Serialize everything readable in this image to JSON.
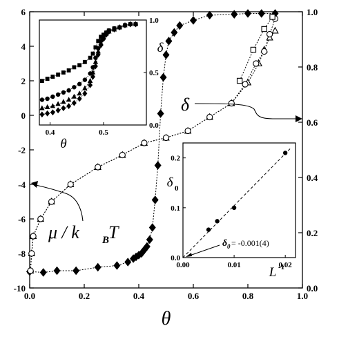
{
  "chart_data": [
    {
      "id": "main",
      "type": "scatter",
      "xlabel": "θ",
      "xlim": [
        0,
        1
      ],
      "xticks": [
        "0.0",
        "0.2",
        "0.4",
        "0.6",
        "0.8",
        "1.0"
      ],
      "ylim_left": [
        -10,
        6
      ],
      "yticks_left": [
        "-10",
        "-8",
        "-6",
        "-4",
        "-2",
        "0",
        "2",
        "4",
        "6"
      ],
      "ylim_right": [
        0,
        1
      ],
      "yticks_right": [
        "0.0",
        "0.2",
        "0.4",
        "0.6",
        "0.8",
        "1.0"
      ],
      "annotations": {
        "mu": "μ / k",
        "mu_sub": "B",
        "mu_tail": "T",
        "delta": "δ"
      },
      "series": [
        {
          "marker": "diamond-filled",
          "axis": "left",
          "points": [
            [
              0.0,
              -9.05
            ],
            [
              0.05,
              -9.1
            ],
            [
              0.1,
              -9.0
            ],
            [
              0.17,
              -9.0
            ],
            [
              0.25,
              -8.8
            ],
            [
              0.32,
              -8.7
            ],
            [
              0.36,
              -8.5
            ],
            [
              0.38,
              -8.3
            ],
            [
              0.39,
              -8.2
            ],
            [
              0.4,
              -8.1
            ],
            [
              0.41,
              -8.0
            ],
            [
              0.42,
              -7.8
            ],
            [
              0.43,
              -7.6
            ],
            [
              0.44,
              -7.2
            ],
            [
              0.45,
              -6.5
            ],
            [
              0.46,
              -4.9
            ],
            [
              0.47,
              -2.9
            ],
            [
              0.48,
              0.1
            ],
            [
              0.49,
              2.2
            ],
            [
              0.5,
              3.5
            ],
            [
              0.51,
              4.3
            ],
            [
              0.53,
              4.8
            ],
            [
              0.55,
              5.2
            ],
            [
              0.6,
              5.5
            ],
            [
              0.66,
              5.8
            ],
            [
              0.75,
              5.85
            ],
            [
              0.8,
              5.9
            ],
            [
              0.85,
              5.9
            ],
            [
              0.9,
              5.9
            ]
          ]
        },
        {
          "marker": "triangle-open",
          "axis": "left",
          "points": [
            [
              0.003,
              -9.0
            ],
            [
              0.007,
              -8.0
            ],
            [
              0.013,
              -7.0
            ],
            [
              0.04,
              -6.0
            ],
            [
              0.08,
              -5.0
            ],
            [
              0.15,
              -4.0
            ],
            [
              0.25,
              -3.0
            ],
            [
              0.34,
              -2.3
            ],
            [
              0.42,
              -1.6
            ],
            [
              0.5,
              -1.3
            ],
            [
              0.58,
              -0.9
            ],
            [
              0.66,
              -0.1
            ],
            [
              0.74,
              0.7
            ],
            [
              0.8,
              1.9
            ],
            [
              0.84,
              3.0
            ],
            [
              0.86,
              3.8
            ],
            [
              0.88,
              4.5
            ],
            [
              0.9,
              4.9
            ]
          ]
        },
        {
          "marker": "circle-open",
          "axis": "left",
          "points": [
            [
              0.003,
              -9.0
            ],
            [
              0.007,
              -8.0
            ],
            [
              0.013,
              -7.0
            ],
            [
              0.04,
              -6.0
            ],
            [
              0.08,
              -5.0
            ],
            [
              0.15,
              -4.0
            ],
            [
              0.25,
              -3.0
            ],
            [
              0.34,
              -2.3
            ],
            [
              0.42,
              -1.6
            ],
            [
              0.5,
              -1.3
            ],
            [
              0.58,
              -0.9
            ],
            [
              0.66,
              -0.1
            ],
            [
              0.74,
              0.7
            ],
            [
              0.79,
              1.8
            ],
            [
              0.83,
              3.0
            ],
            [
              0.86,
              3.7
            ],
            [
              0.88,
              4.7
            ],
            [
              0.9,
              5.6
            ]
          ]
        },
        {
          "marker": "square-open",
          "axis": "left",
          "points": [
            [
              0.77,
              2.0
            ],
            [
              0.82,
              3.8
            ],
            [
              0.86,
              5.0
            ],
            [
              0.89,
              5.7
            ]
          ]
        }
      ]
    },
    {
      "id": "inset_top_left",
      "type": "scatter",
      "xlabel": "θ",
      "ylabel": "δ",
      "xlim": [
        0.38,
        0.58
      ],
      "xticks": [
        "0.4",
        "0.5"
      ],
      "ylim": [
        0,
        1
      ],
      "yticks": [
        "0.0",
        "0.5",
        "1.0"
      ],
      "series": [
        {
          "marker": "square-filled",
          "x": [
            0.385,
            0.395,
            0.405,
            0.415,
            0.425,
            0.435,
            0.445,
            0.455,
            0.465,
            0.475,
            0.48,
            0.485,
            0.49,
            0.495,
            0.5,
            0.505,
            0.51,
            0.52,
            0.53,
            0.54,
            0.55,
            0.56
          ],
          "y": [
            0.42,
            0.44,
            0.46,
            0.48,
            0.5,
            0.52,
            0.55,
            0.57,
            0.6,
            0.64,
            0.68,
            0.74,
            0.8,
            0.84,
            0.86,
            0.88,
            0.9,
            0.92,
            0.93,
            0.95,
            0.96,
            0.96
          ]
        },
        {
          "marker": "circle-filled",
          "x": [
            0.385,
            0.395,
            0.405,
            0.415,
            0.425,
            0.435,
            0.445,
            0.455,
            0.465,
            0.475,
            0.48,
            0.485,
            0.49,
            0.495,
            0.5,
            0.505,
            0.51,
            0.52,
            0.53,
            0.54,
            0.55,
            0.56
          ],
          "y": [
            0.24,
            0.25,
            0.27,
            0.29,
            0.31,
            0.33,
            0.36,
            0.39,
            0.43,
            0.49,
            0.55,
            0.64,
            0.73,
            0.8,
            0.85,
            0.88,
            0.9,
            0.92,
            0.93,
            0.95,
            0.96,
            0.96
          ]
        },
        {
          "marker": "triangle-filled",
          "x": [
            0.385,
            0.395,
            0.405,
            0.415,
            0.425,
            0.435,
            0.445,
            0.455,
            0.465,
            0.475,
            0.48,
            0.485,
            0.49,
            0.495,
            0.5,
            0.505,
            0.51,
            0.52,
            0.53,
            0.54,
            0.55,
            0.56
          ],
          "y": [
            0.16,
            0.17,
            0.18,
            0.2,
            0.22,
            0.24,
            0.27,
            0.3,
            0.35,
            0.42,
            0.5,
            0.6,
            0.7,
            0.78,
            0.84,
            0.87,
            0.89,
            0.91,
            0.93,
            0.95,
            0.96,
            0.96
          ]
        },
        {
          "marker": "diamond-filled",
          "x": [
            0.385,
            0.395,
            0.405,
            0.415,
            0.425,
            0.435,
            0.445,
            0.455,
            0.465,
            0.475,
            0.48,
            0.485,
            0.49,
            0.495,
            0.5,
            0.505,
            0.51,
            0.52,
            0.53,
            0.54,
            0.55,
            0.56
          ],
          "y": [
            0.1,
            0.11,
            0.12,
            0.14,
            0.16,
            0.18,
            0.21,
            0.25,
            0.3,
            0.38,
            0.46,
            0.56,
            0.67,
            0.76,
            0.82,
            0.86,
            0.89,
            0.91,
            0.93,
            0.95,
            0.96,
            0.96
          ]
        }
      ]
    },
    {
      "id": "inset_bottom_right",
      "type": "scatter",
      "xlabel": "L",
      "xlabel_sup": "-1",
      "ylabel": "δ",
      "ylabel_sub": "0",
      "xlim": [
        0,
        0.022
      ],
      "xticks": [
        "0.00",
        "0.01",
        "0.02"
      ],
      "ylim": [
        0,
        0.23
      ],
      "yticks": [
        "0.0",
        "0.1",
        "0.2"
      ],
      "series": [
        {
          "marker": "circle-filled",
          "x": [
            0.005,
            0.0067,
            0.01,
            0.02
          ],
          "y": [
            0.056,
            0.073,
            0.1,
            0.21
          ]
        }
      ],
      "fit": {
        "style": "dashed",
        "x": [
          0,
          0.021
        ],
        "y": [
          -0.001,
          0.219
        ]
      },
      "annotation_prefix": "δ",
      "annotation_sub": "0",
      "annotation": " = -0.001(4)"
    }
  ]
}
